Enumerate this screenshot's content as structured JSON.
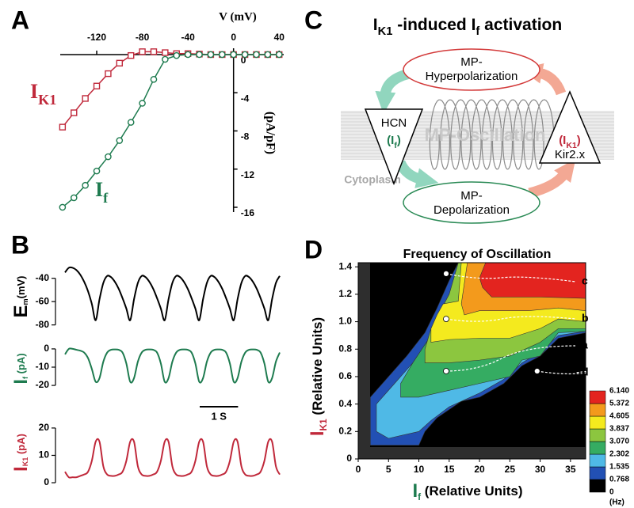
{
  "chart_data": [
    {
      "type": "line",
      "panel": "A",
      "xlabel": "V (mV)",
      "ylabel": "(pA/pF)",
      "x": [
        -150,
        -140,
        -130,
        -120,
        -110,
        -100,
        -90,
        -80,
        -70,
        -60,
        -50,
        -40,
        -30,
        -20,
        -10,
        0,
        10,
        20,
        30,
        40
      ],
      "xlim": [
        -152,
        44
      ],
      "ylim": [
        -16.5,
        0.66
      ],
      "xticks": [
        -120,
        -80,
        -40,
        0,
        40
      ],
      "yticks": [
        0,
        -4,
        -8,
        -12,
        -16
      ],
      "series": [
        {
          "name": [
            "I",
            "K1"
          ],
          "color": "#c0293b",
          "marker": "square",
          "values": [
            -7.6,
            -6.1,
            -4.6,
            -3.3,
            -2,
            -0.9,
            -0.1,
            0.3,
            0.3,
            0.2,
            0.1,
            0.1,
            0.05,
            0,
            0,
            0,
            0,
            0,
            0,
            0
          ]
        },
        {
          "name": [
            "I",
            "f"
          ],
          "color": "#1e7b4f",
          "marker": "circle",
          "values": [
            -16,
            -15,
            -13.7,
            -12.2,
            -10.7,
            -9,
            -7.1,
            -5.1,
            -2.6,
            -0.5,
            -0.1,
            0,
            0,
            0,
            0,
            0,
            0,
            0,
            0,
            0
          ]
        }
      ]
    },
    {
      "type": "line",
      "panel": "B",
      "x": [
        0,
        0.1,
        0.2,
        0.3,
        0.4,
        0.5,
        0.6,
        0.7,
        0.8,
        0.9,
        1,
        1.1,
        1.2,
        1.3,
        1.4,
        1.5,
        1.6,
        1.7,
        1.8,
        1.9,
        2,
        2.1,
        2.2,
        2.3,
        2.4,
        2.5,
        2.6,
        2.7,
        2.8,
        2.9,
        3,
        3.1,
        3.2,
        3.3,
        3.4,
        3.5,
        3.6,
        3.7,
        3.8,
        3.9,
        4,
        4.1,
        4.2,
        4.3,
        4.4,
        4.5,
        4.6,
        4.7,
        4.8,
        4.9,
        5,
        5.1,
        5.2,
        5.3,
        5.4,
        5.5,
        5.6
      ],
      "scale_bar": {
        "value": 1,
        "label": "1 S"
      },
      "series": [
        {
          "name": [
            "E",
            "m",
            "(mV)"
          ],
          "color": "#000000",
          "ylim": [
            -85,
            -28
          ],
          "yticks": [
            -40,
            -60,
            -80
          ],
          "values": [
            -35,
            -31,
            -31,
            -33,
            -37,
            -43,
            -51,
            -62,
            -76,
            -58,
            -44,
            -38,
            -39,
            -43,
            -49,
            -57,
            -66,
            -76,
            -58,
            -44,
            -38,
            -39,
            -43,
            -49,
            -57,
            -66,
            -76,
            -58,
            -44,
            -38,
            -39,
            -43,
            -49,
            -57,
            -66,
            -76,
            -58,
            -44,
            -38,
            -39,
            -43,
            -49,
            -57,
            -66,
            -76,
            -58,
            -44,
            -38,
            -39,
            -43,
            -49,
            -57,
            -66,
            -76,
            -58,
            -44,
            -38
          ]
        },
        {
          "name": [
            "I",
            "f",
            " (pA)"
          ],
          "color": "#1e7b4f",
          "ylim": [
            -23,
            3
          ],
          "yticks": [
            0,
            -10,
            -20
          ],
          "values": [
            -3,
            0,
            0,
            -0.5,
            -1,
            -2,
            -5,
            -11,
            -18,
            -16,
            -7,
            -2,
            -0.5,
            -0.3,
            -0.5,
            -2,
            -8,
            -18,
            -16,
            -7,
            -2,
            -0.5,
            -0.3,
            -0.5,
            -2,
            -8,
            -18,
            -16,
            -7,
            -2,
            -0.5,
            -0.3,
            -0.5,
            -2,
            -8,
            -18,
            -16,
            -7,
            -2,
            -0.5,
            -0.3,
            -0.5,
            -2,
            -8,
            -18,
            -16,
            -7,
            -2,
            -0.5,
            -0.3,
            -0.5,
            -2,
            -8,
            -18,
            -16,
            -7,
            -2
          ]
        },
        {
          "name": [
            "I",
            "K1",
            " (pA)"
          ],
          "color": "#c0293b",
          "ylim": [
            -1,
            22
          ],
          "yticks": [
            0,
            10,
            20
          ],
          "values": [
            4,
            2,
            2,
            2,
            2.5,
            3,
            4,
            8,
            15,
            15,
            6,
            3,
            2.5,
            2.5,
            3,
            4,
            8,
            15,
            15,
            6,
            3,
            2.5,
            2.5,
            3,
            4,
            8,
            15,
            15,
            6,
            3,
            2.5,
            2.5,
            3,
            4,
            8,
            15,
            15,
            6,
            3,
            2.5,
            2.5,
            3,
            4,
            8,
            15,
            15,
            6,
            3,
            2.5,
            2.5,
            3,
            4,
            8,
            15,
            15,
            6,
            3
          ]
        }
      ]
    },
    {
      "type": "contour",
      "panel": "D",
      "title": "Frequency of Oscillation",
      "xlabel": [
        "I",
        "f",
        " (Relative Units)"
      ],
      "ylabel": [
        "I",
        "K1",
        " (Relative Units)"
      ],
      "xlim": [
        0,
        37.5
      ],
      "ylim": [
        0,
        1.43
      ],
      "xticks": [
        0,
        5,
        10,
        15,
        20,
        25,
        30,
        35
      ],
      "yticks": [
        0,
        0.2,
        0.4,
        0.6,
        0.8,
        {
          "value": 1,
          "label": "1.0"
        },
        1.2,
        1.4
      ],
      "levels": [
        0,
        0.768,
        1.535,
        2.302,
        {
          "value": 3.07,
          "label": "3.070"
        },
        3.837,
        4.605,
        5.372,
        {
          "value": 6.14,
          "label": "6.140"
        }
      ],
      "colorbar_unit": "(Hz)",
      "colors": [
        "#000000",
        "#2250b4",
        "#4fb9e6",
        "#35ac62",
        "#8cc63f",
        "#f4ea1e",
        "#f39a1c",
        "#e3241f"
      ],
      "regions": [
        [
          [
            2,
            0.1
          ],
          [
            2,
            0.45
          ],
          [
            5,
            0.6
          ],
          [
            8,
            0.75
          ],
          [
            11,
            0.92
          ],
          [
            13,
            1.1
          ],
          [
            15,
            1.3
          ],
          [
            16.5,
            1.43
          ],
          [
            37.5,
            1.43
          ],
          [
            37.5,
            0.92
          ],
          [
            33,
            0.88
          ],
          [
            30,
            0.75
          ],
          [
            27,
            0.68
          ],
          [
            24,
            0.55
          ],
          [
            20,
            0.45
          ],
          [
            17,
            0.42
          ],
          [
            13,
            0.3
          ],
          [
            11,
            0.2
          ],
          [
            10,
            0.1
          ]
        ],
        [
          [
            3,
            0.2
          ],
          [
            3,
            0.4
          ],
          [
            6,
            0.55
          ],
          [
            9,
            0.7
          ],
          [
            12,
            0.9
          ],
          [
            14,
            1.1
          ],
          [
            16,
            1.3
          ],
          [
            17,
            1.43
          ],
          [
            37.5,
            1.43
          ],
          [
            37.5,
            0.93
          ],
          [
            33,
            0.9
          ],
          [
            30,
            0.78
          ],
          [
            27,
            0.7
          ],
          [
            24,
            0.58
          ],
          [
            20,
            0.48
          ],
          [
            15,
            0.38
          ],
          [
            12,
            0.28
          ],
          [
            10,
            0.2
          ],
          [
            5,
            0.15
          ]
        ],
        [
          [
            7,
            0.45
          ],
          [
            7,
            0.55
          ],
          [
            9,
            0.7
          ],
          [
            12,
            0.9
          ],
          [
            14,
            1.1
          ],
          [
            16,
            1.3
          ],
          [
            17,
            1.43
          ],
          [
            37.5,
            1.43
          ],
          [
            37.5,
            0.93
          ],
          [
            33,
            0.92
          ],
          [
            30,
            0.75
          ],
          [
            27,
            0.72
          ],
          [
            25,
            0.6
          ],
          [
            20,
            0.55
          ],
          [
            15,
            0.5
          ],
          [
            10,
            0.45
          ]
        ],
        [
          [
            11,
            0.7
          ],
          [
            11,
            0.8
          ],
          [
            12,
            0.95
          ],
          [
            15,
            1.2
          ],
          [
            16.5,
            1.43
          ],
          [
            37.5,
            1.43
          ],
          [
            37.5,
            0.95
          ],
          [
            33,
            0.95
          ],
          [
            30,
            0.85
          ],
          [
            25,
            0.75
          ],
          [
            20,
            0.72
          ],
          [
            15,
            0.7
          ]
        ],
        [
          [
            12,
            0.85
          ],
          [
            12,
            0.95
          ],
          [
            13,
            1.05
          ],
          [
            14,
            1.13
          ],
          [
            16.5,
            1.15
          ],
          [
            17,
            1.43
          ],
          [
            37.5,
            1.43
          ],
          [
            37.5,
            1.0
          ],
          [
            33,
            1.02
          ],
          [
            30,
            0.95
          ],
          [
            25,
            0.88
          ],
          [
            20,
            0.88
          ],
          [
            15,
            0.87
          ]
        ],
        [
          [
            17.5,
            1.05
          ],
          [
            17,
            1.13
          ],
          [
            18,
            1.43
          ],
          [
            37.5,
            1.43
          ],
          [
            37.5,
            1.08
          ],
          [
            33,
            1.1
          ],
          [
            28,
            1.08
          ],
          [
            20,
            1.08
          ]
        ],
        [
          [
            20.5,
            1.25
          ],
          [
            20,
            1.32
          ],
          [
            21,
            1.43
          ],
          [
            37.5,
            1.43
          ],
          [
            37.5,
            1.17
          ],
          [
            30,
            1.18
          ],
          [
            22,
            1.18
          ]
        ]
      ],
      "annotations": [
        {
          "label": "c",
          "x": 14.5,
          "y": 1.35
        },
        {
          "label": "b",
          "x": 14.5,
          "y": 1.02
        },
        {
          "label": "a",
          "x": 14.5,
          "y": 0.64
        },
        {
          "label": "d",
          "x": 29.5,
          "y": 0.64
        }
      ]
    }
  ],
  "diagram": {
    "panel": "C",
    "title": [
      "I",
      "K1",
      " -induced I",
      "f",
      "  activation"
    ],
    "top_node": [
      "MP-",
      "Hyperpolarization"
    ],
    "bottom_node": [
      "MP-",
      "Depolarization"
    ],
    "left_channel": {
      "name": "HCN",
      "current": [
        "(I",
        "f",
        ")"
      ]
    },
    "right_channel": {
      "current": [
        "(I",
        "K1",
        ")"
      ],
      "name": "Kir2.x"
    },
    "membrane": "MP-Oscillation",
    "cytoplasm": "Cytoplasm"
  }
}
